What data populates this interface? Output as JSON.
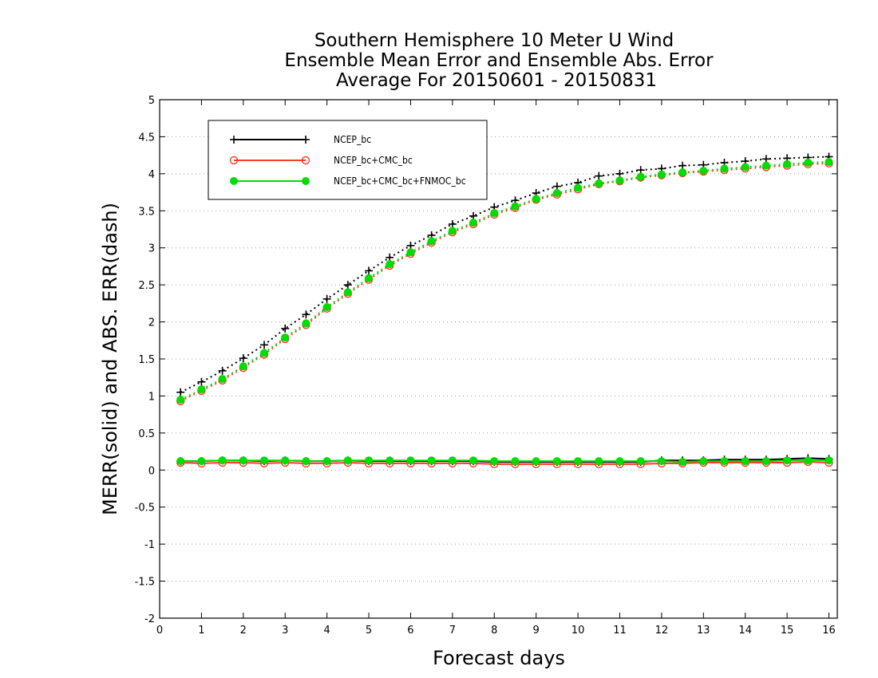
{
  "chart_data": {
    "type": "line",
    "title": [
      "Southern Hemisphere 10 Meter U Wind",
      "Ensemble Mean Error and Ensemble Abs. Error",
      "Average For 20150601 - 20150831"
    ],
    "xlabel": "Forecast days",
    "ylabel": "MERR(solid) and ABS. ERR(dash)",
    "xlim": [
      0,
      16.2
    ],
    "ylim": [
      -2,
      5
    ],
    "xticks": [
      "0",
      "1",
      "2",
      "3",
      "4",
      "5",
      "6",
      "7",
      "8",
      "9",
      "10",
      "11",
      "12",
      "13",
      "14",
      "15",
      "16"
    ],
    "yticks": [
      "5",
      "4.5",
      "4",
      "3.5",
      "3",
      "2.5",
      "2",
      "1.5",
      "1",
      "0.5",
      "0",
      "-0.5",
      "-1",
      "-1.5",
      "-2"
    ],
    "grid": "horizontal dotted",
    "legend_position": "top-left",
    "x": [
      0.5,
      1,
      1.5,
      2,
      2.5,
      3,
      3.5,
      4,
      4.5,
      5,
      5.5,
      6,
      6.5,
      7,
      7.5,
      8,
      8.5,
      9,
      9.5,
      10,
      10.5,
      11,
      11.5,
      12,
      12.5,
      13,
      13.5,
      14,
      14.5,
      15,
      15.5,
      16
    ],
    "series": [
      {
        "name": "NCEP_bc",
        "color": "#000000",
        "marker": "plus",
        "merr": [
          0.12,
          0.12,
          0.13,
          0.13,
          0.12,
          0.13,
          0.12,
          0.12,
          0.13,
          0.12,
          0.12,
          0.12,
          0.12,
          0.12,
          0.12,
          0.11,
          0.11,
          0.11,
          0.11,
          0.11,
          0.11,
          0.11,
          0.11,
          0.13,
          0.13,
          0.13,
          0.14,
          0.14,
          0.14,
          0.15,
          0.16,
          0.15
        ],
        "abs_err": [
          1.05,
          1.19,
          1.34,
          1.51,
          1.69,
          1.91,
          2.1,
          2.31,
          2.5,
          2.69,
          2.87,
          3.03,
          3.17,
          3.32,
          3.43,
          3.55,
          3.64,
          3.74,
          3.83,
          3.88,
          3.97,
          4.0,
          4.05,
          4.07,
          4.11,
          4.12,
          4.15,
          4.17,
          4.2,
          4.21,
          4.22,
          4.23
        ]
      },
      {
        "name": "NCEP_bc+CMC_bc",
        "color": "#ff3a2a",
        "marker": "open-circle",
        "merr": [
          0.1,
          0.09,
          0.1,
          0.1,
          0.09,
          0.1,
          0.09,
          0.09,
          0.1,
          0.09,
          0.09,
          0.09,
          0.09,
          0.09,
          0.09,
          0.08,
          0.08,
          0.08,
          0.08,
          0.08,
          0.08,
          0.08,
          0.08,
          0.09,
          0.09,
          0.1,
          0.1,
          0.1,
          0.1,
          0.1,
          0.11,
          0.1
        ],
        "abs_err": [
          0.93,
          1.07,
          1.21,
          1.38,
          1.56,
          1.77,
          1.96,
          2.18,
          2.38,
          2.57,
          2.76,
          2.92,
          3.07,
          3.21,
          3.32,
          3.45,
          3.54,
          3.65,
          3.72,
          3.79,
          3.86,
          3.9,
          3.95,
          3.98,
          4.01,
          4.03,
          4.05,
          4.07,
          4.09,
          4.11,
          4.13,
          4.14
        ]
      },
      {
        "name": "NCEP_bc+CMC_bc+FNMOC_bc",
        "color": "#00dd00",
        "marker": "filled-circle",
        "merr": [
          0.12,
          0.12,
          0.13,
          0.13,
          0.13,
          0.13,
          0.12,
          0.12,
          0.13,
          0.13,
          0.13,
          0.13,
          0.13,
          0.13,
          0.13,
          0.12,
          0.12,
          0.12,
          0.12,
          0.12,
          0.12,
          0.12,
          0.12,
          0.12,
          0.11,
          0.12,
          0.12,
          0.12,
          0.12,
          0.13,
          0.13,
          0.13
        ],
        "abs_err": [
          0.95,
          1.09,
          1.23,
          1.4,
          1.58,
          1.79,
          1.98,
          2.2,
          2.4,
          2.59,
          2.78,
          2.94,
          3.09,
          3.23,
          3.34,
          3.47,
          3.56,
          3.66,
          3.74,
          3.81,
          3.87,
          3.91,
          3.96,
          3.99,
          4.02,
          4.04,
          4.07,
          4.09,
          4.11,
          4.13,
          4.15,
          4.16
        ]
      }
    ]
  }
}
